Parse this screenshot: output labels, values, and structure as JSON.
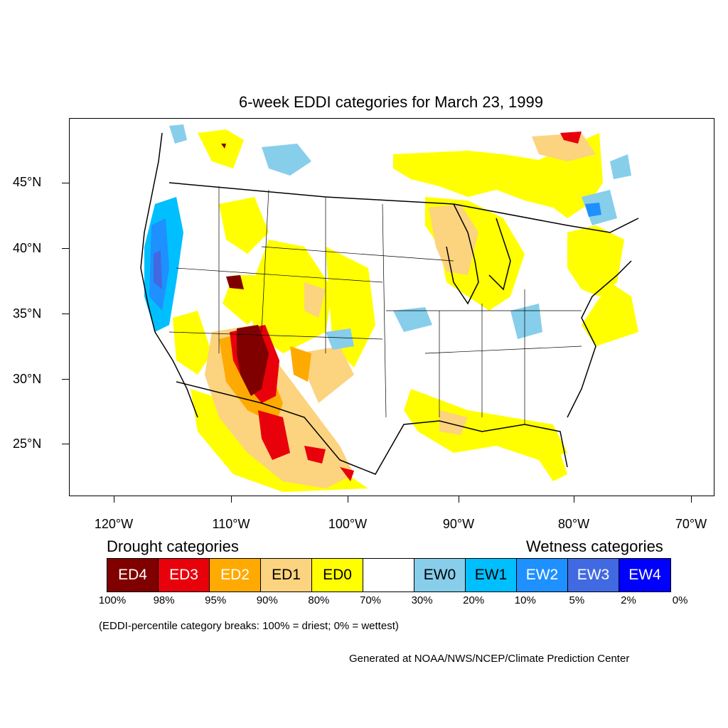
{
  "title": "6-week EDDI categories for March 23, 1999",
  "y_axis_labels": [
    "45°N",
    "40°N",
    "35°N",
    "30°N",
    "25°N"
  ],
  "x_axis_labels": [
    "120°W",
    "110°W",
    "100°W",
    "90°W",
    "80°W",
    "70°W"
  ],
  "legend": {
    "drought_heading": "Drought categories",
    "wetness_heading": "Wetness categories",
    "categories": [
      {
        "label": "ED4",
        "color": "#800000",
        "text_color": "#ffffff"
      },
      {
        "label": "ED3",
        "color": "#e8000b",
        "text_color": "#ffffff"
      },
      {
        "label": "ED2",
        "color": "#ffaa00",
        "text_color": "#ffffff"
      },
      {
        "label": "ED1",
        "color": "#fcd37f",
        "text_color": "#000000"
      },
      {
        "label": "ED0",
        "color": "#ffff00",
        "text_color": "#000000"
      },
      {
        "label": "",
        "color": "#ffffff",
        "text_color": "#000000"
      },
      {
        "label": "EW0",
        "color": "#87ceeb",
        "text_color": "#000000"
      },
      {
        "label": "EW1",
        "color": "#00bfff",
        "text_color": "#000000"
      },
      {
        "label": "EW2",
        "color": "#1e90ff",
        "text_color": "#ffffff"
      },
      {
        "label": "EW3",
        "color": "#4169e1",
        "text_color": "#ffffff"
      },
      {
        "label": "EW4",
        "color": "#0000ff",
        "text_color": "#ffffff"
      }
    ],
    "breaks": [
      "100%",
      "98%",
      "95%",
      "90%",
      "80%",
      "70%",
      "30%",
      "20%",
      "10%",
      "5%",
      "2%",
      "0%"
    ]
  },
  "note": "(EDDI-percentile category breaks: 100% = driest; 0% = wettest)",
  "credit": "Generated at NOAA/NWS/NCEP/Climate Prediction Center"
}
